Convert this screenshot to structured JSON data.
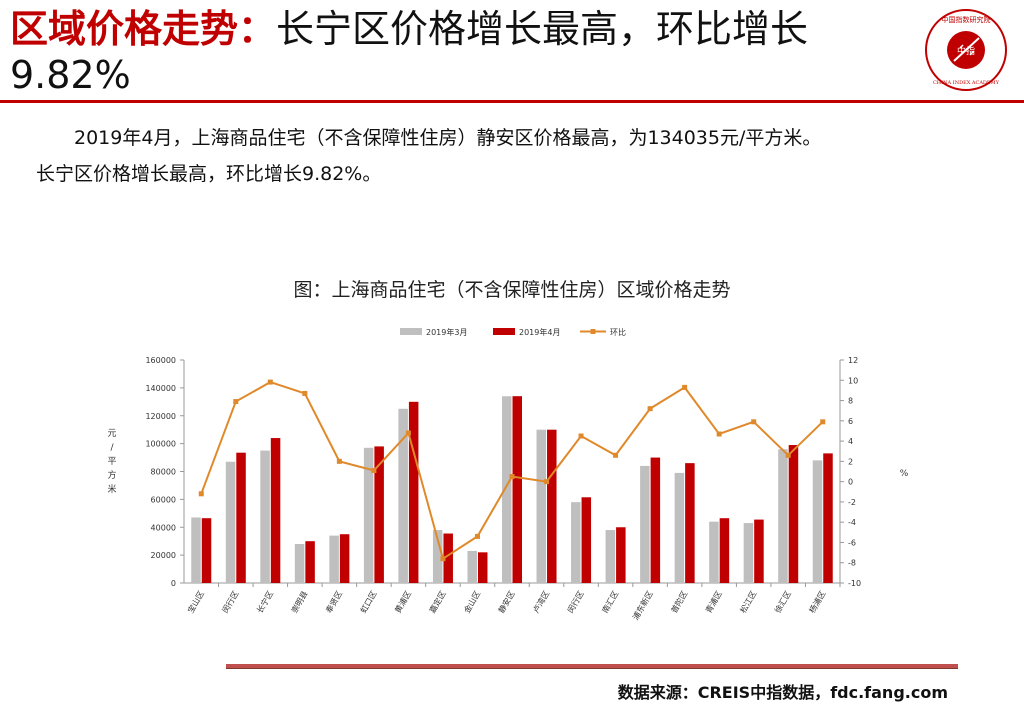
{
  "header": {
    "title_highlight": "区域价格走势：",
    "title_rest": "长宁区价格增长最高，环比增长9.82%",
    "logo_text_cn": "中国指数研究院",
    "logo_text_en": "CHINA INDEX ACADEMY",
    "logo_center": "中指"
  },
  "body": {
    "para1": "2019年4月，上海商品住宅（不含保障性住房）静安区价格最高，为134035元/平方米。",
    "para2": "长宁区价格增长最高，环比增长9.82%。"
  },
  "figure": {
    "caption": "图：上海商品住宅（不含保障性住房）区域价格走势"
  },
  "colors": {
    "accent": "#c00000",
    "mar": "#bfbfbf",
    "apr": "#c00000",
    "mom": "#e0892a"
  },
  "chart_data": {
    "type": "bar",
    "categories": [
      "宝山区",
      "闵行区",
      "长宁区",
      "崇明县",
      "奉贤区",
      "虹口区",
      "黄浦区",
      "嘉定区",
      "金山区",
      "静安区",
      "卢湾区",
      "闵行区",
      "南汇区",
      "浦东新区",
      "普陀区",
      "青浦区",
      "松江区",
      "徐汇区",
      "杨浦区"
    ],
    "series": [
      {
        "name": "2019年3月",
        "kind": "bar",
        "axis": "left",
        "values": [
          47000,
          87000,
          95000,
          28000,
          34000,
          97000,
          125000,
          38000,
          23000,
          134000,
          110000,
          58000,
          38000,
          84000,
          79000,
          44000,
          43000,
          96000,
          88000
        ]
      },
      {
        "name": "2019年4月",
        "kind": "bar",
        "axis": "left",
        "values": [
          46500,
          93500,
          104000,
          30000,
          35000,
          98000,
          130000,
          35500,
          22000,
          134035,
          110000,
          61500,
          40000,
          90000,
          86000,
          46500,
          45500,
          99000,
          93000
        ]
      },
      {
        "name": "环比",
        "kind": "line",
        "axis": "right",
        "values": [
          -1.2,
          7.9,
          9.82,
          8.7,
          2.0,
          1.1,
          4.8,
          -7.6,
          -5.4,
          0.5,
          0,
          4.5,
          2.6,
          7.2,
          9.3,
          4.7,
          5.9,
          2.6,
          5.9
        ]
      }
    ],
    "ylabel": "元/平方米",
    "y2label": "%",
    "ylim": [
      0,
      160000
    ],
    "yticks": [
      "0",
      "20000",
      "40000",
      "60000",
      "80000",
      "100000",
      "120000",
      "140000",
      "160000"
    ],
    "y2lim": [
      -10,
      12
    ],
    "y2ticks": [
      "-10",
      "-8",
      "-6",
      "-4",
      "-2",
      "0",
      "2",
      "4",
      "6",
      "8",
      "10",
      "12"
    ],
    "legend_position": "top-center",
    "grid": false
  },
  "footer": {
    "source": "数据来源：CREIS中指数据，fdc.fang.com"
  }
}
